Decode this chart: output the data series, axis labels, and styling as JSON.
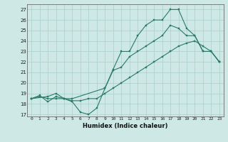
{
  "xlabel": "Humidex (Indice chaleur)",
  "xlim": [
    -0.5,
    23.5
  ],
  "ylim": [
    16.8,
    27.5
  ],
  "yticks": [
    17,
    18,
    19,
    20,
    21,
    22,
    23,
    24,
    25,
    26,
    27
  ],
  "xticks": [
    0,
    1,
    2,
    3,
    4,
    5,
    6,
    7,
    8,
    9,
    10,
    11,
    12,
    13,
    14,
    15,
    16,
    17,
    18,
    19,
    20,
    21,
    22,
    23
  ],
  "bg_color": "#cde8e5",
  "line_color": "#2a7a6a",
  "series": {
    "line1_x": [
      0,
      1,
      2,
      3,
      4,
      5,
      6,
      7,
      8,
      9,
      10,
      11,
      12,
      13,
      14,
      15,
      16,
      17,
      18,
      19,
      20,
      21,
      22,
      23
    ],
    "line1_y": [
      18.5,
      18.8,
      18.2,
      18.7,
      18.5,
      18.2,
      17.2,
      17.0,
      17.6,
      19.5,
      21.3,
      23.0,
      23.0,
      24.5,
      25.5,
      26.0,
      26.0,
      27.0,
      27.0,
      25.2,
      24.5,
      23.0,
      23.0,
      22.0
    ],
    "line2_x": [
      0,
      2,
      3,
      4,
      5,
      9,
      10,
      11,
      12,
      13,
      14,
      15,
      16,
      17,
      18,
      19,
      20,
      21,
      22,
      23
    ],
    "line2_y": [
      18.5,
      18.7,
      19.0,
      18.5,
      18.5,
      19.5,
      21.2,
      21.5,
      22.5,
      23.0,
      23.5,
      24.0,
      24.5,
      25.5,
      25.2,
      24.5,
      24.5,
      23.0,
      23.0,
      22.0
    ],
    "line3_x": [
      0,
      1,
      2,
      3,
      4,
      5,
      6,
      7,
      8,
      9,
      10,
      11,
      12,
      13,
      14,
      15,
      16,
      17,
      18,
      19,
      20,
      21,
      22,
      23
    ],
    "line3_y": [
      18.5,
      18.7,
      18.5,
      18.5,
      18.5,
      18.3,
      18.3,
      18.5,
      18.5,
      19.0,
      19.5,
      20.0,
      20.5,
      21.0,
      21.5,
      22.0,
      22.5,
      23.0,
      23.5,
      23.8,
      24.0,
      23.5,
      23.0,
      22.0
    ]
  }
}
